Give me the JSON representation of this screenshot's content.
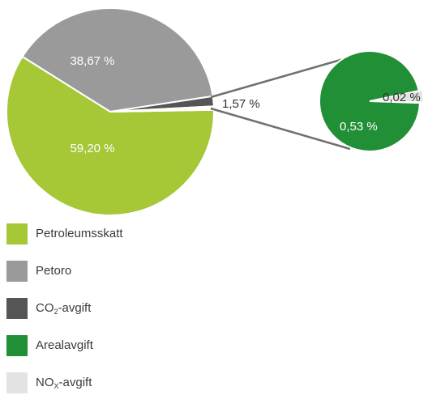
{
  "chart_data": [
    {
      "type": "pie",
      "slices": [
        {
          "label": "Petroleumsskatt",
          "value": 59.2,
          "display": "59,20 %",
          "color": "#a6c736"
        },
        {
          "label": "Petoro",
          "value": 38.67,
          "display": "38,67 %",
          "color": "#9a9a9a"
        },
        {
          "label": "CO2-avgift",
          "value": 1.57,
          "display": "1,57 %",
          "color": "#555555"
        },
        {
          "label": "Arealavgift + NOx-avgift",
          "value": 0.55,
          "display": "",
          "color": "#ffffff",
          "exploded": true
        }
      ]
    },
    {
      "type": "pie",
      "slices": [
        {
          "label": "Arealavgift",
          "value": 0.53,
          "display": "0,53 %",
          "color": "#218f36"
        },
        {
          "label": "NOx-avgift",
          "value": 0.02,
          "display": "0,02 %",
          "color": "#e3e3e3"
        }
      ]
    }
  ],
  "legend": [
    {
      "main": "Petroleumsskatt",
      "sub": "",
      "suffix": "",
      "color": "#a6c736"
    },
    {
      "main": "Petoro",
      "sub": "",
      "suffix": "",
      "color": "#9a9a9a"
    },
    {
      "main": "CO",
      "sub": "2",
      "suffix": "-avgift",
      "color": "#555555"
    },
    {
      "main": "Arealavgift",
      "sub": "",
      "suffix": "",
      "color": "#218f36"
    },
    {
      "main": "NO",
      "sub": "X",
      "suffix": "-avgift",
      "color": "#e3e3e3"
    }
  ]
}
